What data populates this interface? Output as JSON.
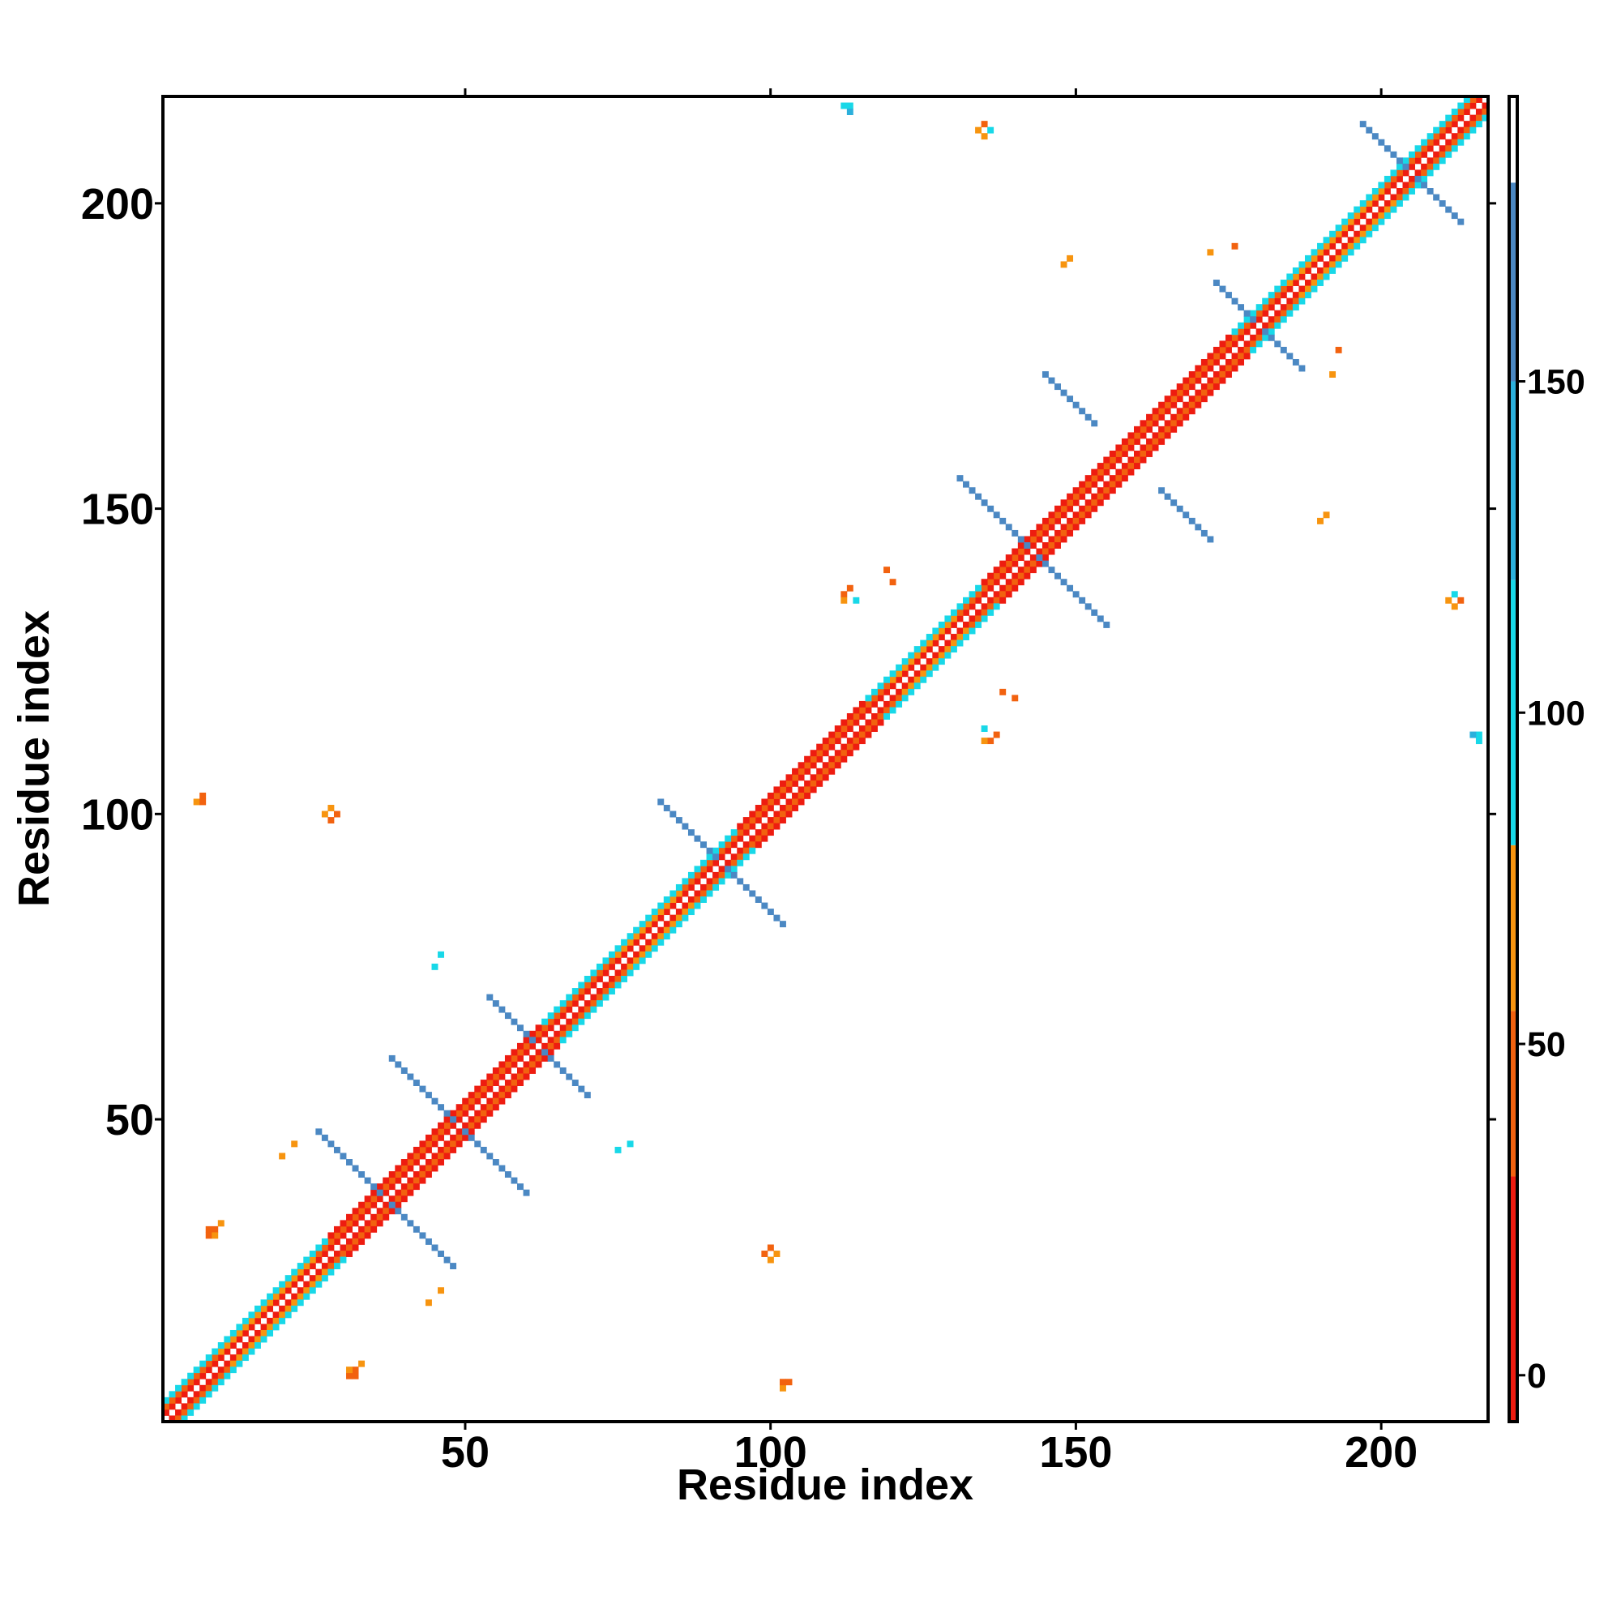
{
  "chart_data": {
    "type": "heatmap",
    "x_label": "Residue index",
    "y_label": "Residue index",
    "xlim": [
      0.5,
      217.5
    ],
    "ylim": [
      0.5,
      217.5
    ],
    "xticks": [
      50,
      100,
      150,
      200
    ],
    "yticks": [
      50,
      100,
      150,
      200
    ],
    "symmetric": true,
    "colorbar": {
      "lim": [
        -7,
        193
      ],
      "ticks": [
        0,
        50,
        100,
        150
      ],
      "bands": [
        {
          "from": -7,
          "to": 30,
          "color": "#ee1c10"
        },
        {
          "from": 30,
          "to": 55,
          "color": "#f2620f"
        },
        {
          "from": 55,
          "to": 80,
          "color": "#f7940f"
        },
        {
          "from": 80,
          "to": 120,
          "color": "#18d8e8"
        },
        {
          "from": 120,
          "to": 150,
          "color": "#2cb0dc"
        },
        {
          "from": 150,
          "to": 180,
          "color": "#4b88c3"
        },
        {
          "from": 180,
          "to": 193,
          "color": "#ffffff"
        }
      ]
    },
    "diagonals": [
      {
        "x0": 1,
        "offset": 1,
        "values": [
          3,
          3,
          3,
          3,
          3,
          3,
          3,
          3,
          3,
          3,
          3,
          3,
          3,
          3,
          3,
          3,
          3,
          3,
          3,
          3,
          3,
          3,
          3,
          3,
          3,
          3,
          3,
          3,
          3,
          3,
          3,
          3,
          3,
          3,
          3,
          3,
          3,
          3,
          3,
          3,
          3,
          3,
          3,
          3,
          3,
          3,
          3,
          3,
          3,
          3,
          3,
          3,
          3,
          3,
          3,
          3,
          3,
          3,
          3,
          3,
          3,
          3,
          3,
          3,
          3,
          3,
          3,
          3,
          3,
          3,
          3,
          3,
          3,
          3,
          3,
          3,
          3,
          3,
          3,
          3,
          3,
          3,
          3,
          3,
          3,
          3,
          3,
          3,
          3,
          3,
          3,
          3,
          3,
          3,
          3,
          3,
          3,
          3,
          3,
          3,
          3,
          3,
          3,
          3,
          3,
          3,
          3,
          3,
          3,
          3,
          3,
          3,
          3,
          3,
          3,
          3,
          3,
          3,
          3,
          3,
          3,
          3,
          3,
          3,
          3,
          3,
          3,
          3,
          3,
          3,
          3,
          3,
          3,
          3,
          3,
          3,
          3,
          3,
          3,
          3,
          3,
          3,
          3,
          3,
          3,
          3,
          3,
          3,
          3,
          3,
          3,
          3,
          3,
          3,
          3,
          3,
          3,
          3,
          3,
          3,
          3,
          3,
          3,
          3,
          3,
          3,
          3,
          3,
          3,
          3,
          3,
          3,
          3,
          3,
          3,
          3,
          3,
          3,
          3,
          3,
          3,
          3,
          3,
          3,
          3,
          3,
          3,
          3,
          3,
          3,
          3,
          3,
          3,
          3,
          3,
          3,
          3,
          3,
          3,
          3,
          3,
          3,
          3,
          3,
          3,
          3,
          3,
          3,
          3,
          3,
          3,
          3,
          3,
          3,
          3,
          3
        ]
      },
      {
        "x0": 1,
        "offset": 2,
        "values": [
          45,
          45,
          45,
          45,
          45,
          45,
          45,
          45,
          45,
          65,
          65,
          65,
          65,
          65,
          65,
          65,
          65,
          65,
          65,
          65,
          65,
          65,
          65,
          65,
          65,
          45,
          45,
          45,
          45,
          45,
          45,
          45,
          45,
          45,
          45,
          45,
          45,
          45,
          45,
          45,
          45,
          45,
          45,
          45,
          45,
          45,
          45,
          45,
          45,
          45,
          45,
          45,
          45,
          45,
          45,
          45,
          45,
          45,
          45,
          45,
          45,
          45,
          45,
          45,
          45,
          45,
          45,
          45,
          45,
          45,
          45,
          45,
          45,
          45,
          65,
          65,
          65,
          65,
          65,
          65,
          65,
          65,
          65,
          65,
          65,
          45,
          45,
          45,
          45,
          45,
          45,
          45,
          45,
          45,
          45,
          45,
          45,
          45,
          45,
          45,
          45,
          45,
          45,
          45,
          45,
          45,
          45,
          45,
          45,
          45,
          45,
          45,
          45,
          45,
          45,
          45,
          45,
          45,
          45,
          65,
          65,
          65,
          65,
          65,
          65,
          65,
          65,
          65,
          65,
          65,
          45,
          45,
          45,
          45,
          45,
          45,
          45,
          45,
          45,
          45,
          45,
          45,
          45,
          45,
          45,
          45,
          45,
          45,
          45,
          45,
          45,
          45,
          45,
          45,
          45,
          45,
          45,
          45,
          45,
          45,
          45,
          45,
          45,
          45,
          45,
          45,
          45,
          45,
          45,
          45,
          45,
          45,
          45,
          45,
          45,
          45,
          45,
          45,
          45,
          45,
          45,
          45,
          45,
          45,
          65,
          65,
          65,
          65,
          65,
          65,
          65,
          65,
          65,
          65,
          65,
          65,
          65,
          65,
          65,
          65,
          45,
          45,
          45,
          45,
          45,
          45,
          45,
          45,
          45,
          45,
          45,
          45,
          45,
          45,
          45
        ]
      },
      {
        "x0": 1,
        "offset": 3,
        "values": [
          105,
          105,
          105,
          105,
          105,
          105,
          105,
          105,
          105,
          105,
          105,
          105,
          105,
          105,
          105,
          105,
          105,
          105,
          105,
          105,
          105,
          105,
          105,
          105,
          105,
          105,
          105,
          20,
          20,
          20,
          20,
          20,
          20,
          20,
          20,
          20,
          20,
          20,
          20,
          20,
          20,
          20,
          20,
          20,
          20,
          20,
          20,
          20,
          20,
          20,
          20,
          20,
          20,
          20,
          20,
          20,
          20,
          20,
          20,
          20,
          20,
          20,
          105,
          105,
          105,
          105,
          105,
          105,
          105,
          105,
          105,
          105,
          105,
          105,
          105,
          105,
          105,
          105,
          105,
          105,
          105,
          105,
          105,
          105,
          105,
          105,
          105,
          105,
          105,
          105,
          105,
          105,
          105,
          105,
          20,
          20,
          20,
          20,
          20,
          20,
          20,
          20,
          20,
          20,
          20,
          20,
          20,
          20,
          20,
          20,
          20,
          20,
          20,
          20,
          20,
          105,
          105,
          105,
          105,
          105,
          105,
          105,
          105,
          105,
          105,
          105,
          105,
          105,
          105,
          105,
          105,
          105,
          105,
          105,
          20,
          20,
          20,
          20,
          20,
          20,
          20,
          20,
          20,
          20,
          20,
          20,
          20,
          20,
          20,
          20,
          20,
          20,
          20,
          20,
          20,
          20,
          20,
          20,
          20,
          20,
          20,
          20,
          20,
          20,
          20,
          20,
          20,
          20,
          20,
          20,
          20,
          20,
          20,
          20,
          20,
          105,
          105,
          105,
          105,
          105,
          105,
          105,
          105,
          105,
          105,
          105,
          105,
          105,
          105,
          105,
          105,
          105,
          105,
          105,
          105,
          105,
          105,
          105,
          105,
          105,
          105,
          105,
          105,
          105,
          105,
          105,
          105,
          105,
          105,
          105,
          105,
          105,
          105,
          105
        ]
      }
    ],
    "cells": [
      [
        26,
        48,
        150
      ],
      [
        27,
        47,
        150
      ],
      [
        28,
        46,
        150
      ],
      [
        29,
        45,
        150
      ],
      [
        30,
        44,
        150
      ],
      [
        31,
        43,
        150
      ],
      [
        32,
        42,
        150
      ],
      [
        33,
        41,
        150
      ],
      [
        34,
        40,
        150
      ],
      [
        35,
        39,
        150
      ],
      [
        36,
        38,
        150
      ],
      [
        38,
        60,
        150
      ],
      [
        39,
        59,
        150
      ],
      [
        40,
        58,
        150
      ],
      [
        41,
        57,
        150
      ],
      [
        42,
        56,
        150
      ],
      [
        43,
        55,
        150
      ],
      [
        44,
        54,
        150
      ],
      [
        45,
        53,
        150
      ],
      [
        46,
        52,
        150
      ],
      [
        47,
        51,
        150
      ],
      [
        48,
        50,
        150
      ],
      [
        54,
        70,
        150
      ],
      [
        55,
        69,
        150
      ],
      [
        56,
        68,
        150
      ],
      [
        57,
        67,
        150
      ],
      [
        58,
        66,
        150
      ],
      [
        59,
        65,
        150
      ],
      [
        60,
        64,
        150
      ],
      [
        61,
        63,
        150
      ],
      [
        82,
        102,
        150
      ],
      [
        83,
        101,
        150
      ],
      [
        84,
        100,
        150
      ],
      [
        85,
        99,
        150
      ],
      [
        86,
        98,
        150
      ],
      [
        87,
        97,
        150
      ],
      [
        88,
        96,
        150
      ],
      [
        89,
        95,
        150
      ],
      [
        90,
        94,
        150
      ],
      [
        91,
        93,
        150
      ],
      [
        131,
        155,
        150
      ],
      [
        132,
        154,
        150
      ],
      [
        133,
        153,
        150
      ],
      [
        134,
        152,
        150
      ],
      [
        135,
        151,
        150
      ],
      [
        136,
        150,
        150
      ],
      [
        137,
        149,
        150
      ],
      [
        138,
        148,
        150
      ],
      [
        139,
        147,
        150
      ],
      [
        140,
        146,
        150
      ],
      [
        141,
        145,
        150
      ],
      [
        142,
        144,
        150
      ],
      [
        145,
        172,
        150
      ],
      [
        146,
        171,
        150
      ],
      [
        147,
        170,
        150
      ],
      [
        148,
        169,
        150
      ],
      [
        149,
        168,
        150
      ],
      [
        150,
        167,
        150
      ],
      [
        151,
        166,
        150
      ],
      [
        152,
        165,
        150
      ],
      [
        153,
        164,
        150
      ],
      [
        173,
        187,
        150
      ],
      [
        174,
        186,
        150
      ],
      [
        175,
        185,
        150
      ],
      [
        176,
        184,
        150
      ],
      [
        177,
        183,
        150
      ],
      [
        178,
        182,
        150
      ],
      [
        179,
        181,
        150
      ],
      [
        197,
        213,
        150
      ],
      [
        198,
        212,
        150
      ],
      [
        199,
        211,
        150
      ],
      [
        200,
        210,
        150
      ],
      [
        201,
        209,
        150
      ],
      [
        202,
        208,
        150
      ],
      [
        203,
        207,
        150
      ],
      [
        204,
        206,
        150
      ],
      [
        8,
        31,
        35
      ],
      [
        8,
        32,
        40
      ],
      [
        9,
        32,
        30
      ],
      [
        10,
        33,
        55
      ],
      [
        9,
        31,
        60
      ],
      [
        28,
        99,
        45
      ],
      [
        29,
        100,
        35
      ],
      [
        28,
        101,
        60
      ],
      [
        27,
        100,
        55
      ],
      [
        7,
        103,
        50
      ],
      [
        6,
        102,
        60
      ],
      [
        7,
        102,
        40
      ],
      [
        112,
        216,
        110
      ],
      [
        113,
        216,
        100
      ],
      [
        113,
        215,
        120
      ],
      [
        134,
        212,
        55
      ],
      [
        135,
        213,
        45
      ],
      [
        136,
        212,
        100
      ],
      [
        135,
        211,
        60
      ],
      [
        112,
        136,
        50
      ],
      [
        113,
        137,
        45
      ],
      [
        114,
        135,
        105
      ],
      [
        112,
        135,
        60
      ],
      [
        20,
        44,
        60
      ],
      [
        22,
        46,
        55
      ],
      [
        119,
        140,
        45
      ],
      [
        120,
        138,
        40
      ],
      [
        148,
        190,
        65
      ],
      [
        149,
        191,
        55
      ],
      [
        172,
        192,
        60
      ],
      [
        176,
        193,
        45
      ],
      [
        45,
        75,
        110
      ],
      [
        46,
        77,
        115
      ]
    ]
  }
}
